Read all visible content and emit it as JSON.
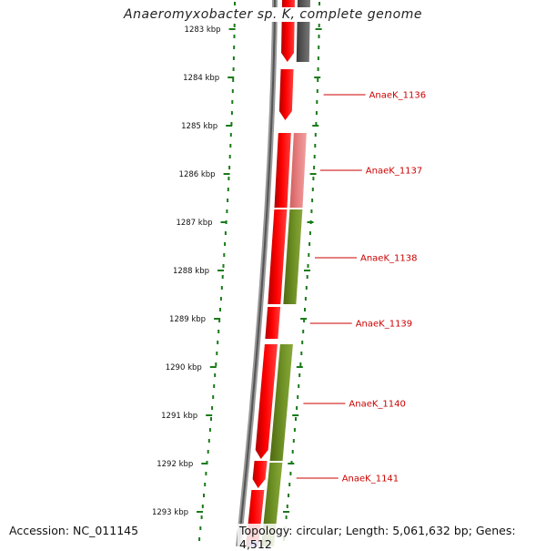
{
  "title": "Anaeromyxobacter sp. K, complete genome",
  "footer": {
    "accession": "Accession: NC_011145",
    "summary": "Topology: circular; Length: 5,061,632 bp; Genes: 4,512"
  },
  "colors": {
    "background": "#ffffff",
    "forward_gene": "#ff0000",
    "reverse_gene": "#6b8e23",
    "reverse_gene_light": "#e88080",
    "reverse_gene_gray": "#5a5a5a",
    "tick": "#1a7a1a",
    "label": "#cc0000"
  },
  "ruler": {
    "unit": "kbp",
    "ticks": [
      "1283 kbp",
      "1284 kbp",
      "1285 kbp",
      "1286 kbp",
      "1287 kbp",
      "1288 kbp",
      "1289 kbp",
      "1290 kbp",
      "1291 kbp",
      "1292 kbp",
      "1293 kbp"
    ],
    "start_kbp": 1283,
    "end_kbp": 1293
  },
  "gene_labels": [
    "AnaeK_1136",
    "AnaeK_1137",
    "AnaeK_1138",
    "AnaeK_1139",
    "AnaeK_1140",
    "AnaeK_1141"
  ]
}
